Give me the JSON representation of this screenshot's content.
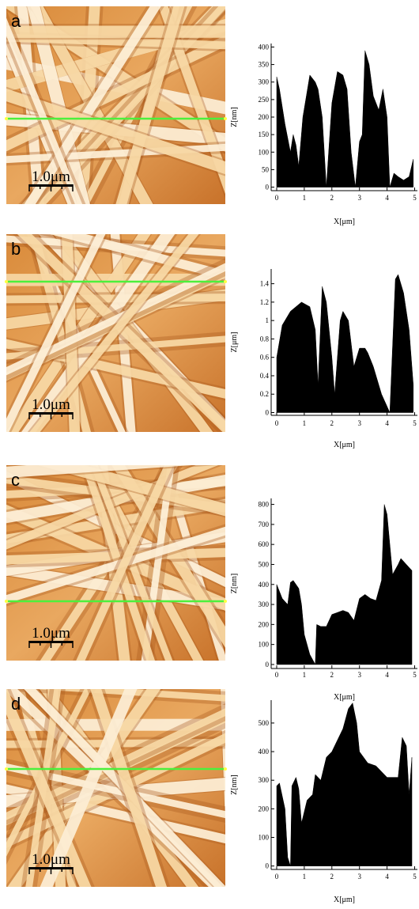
{
  "chart_data": [
    {
      "type": "area",
      "panel_label": "a",
      "scale_bar": "1.0μm",
      "xlabel": "X[μm]",
      "ylabel": "Z[nm]",
      "color": "#000000",
      "x": [
        0,
        0.1,
        0.3,
        0.5,
        0.6,
        0.7,
        0.8,
        0.95,
        1.2,
        1.4,
        1.5,
        1.65,
        1.8,
        2.0,
        2.2,
        2.4,
        2.55,
        2.7,
        2.85,
        3.0,
        3.1,
        3.2,
        3.35,
        3.5,
        3.7,
        3.85,
        4.0,
        4.1,
        4.25,
        4.4,
        4.6,
        4.8,
        4.95
      ],
      "values": [
        315,
        280,
        180,
        100,
        150,
        120,
        60,
        200,
        320,
        300,
        280,
        200,
        0,
        240,
        330,
        320,
        280,
        100,
        0,
        130,
        150,
        390,
        350,
        260,
        220,
        280,
        200,
        0,
        40,
        30,
        20,
        30,
        80
      ],
      "xlim": [
        -0.2,
        5.1
      ],
      "ylim": [
        -10,
        410
      ],
      "xticks": [
        0,
        1,
        2,
        3,
        4,
        5
      ],
      "yticks": [
        0,
        50,
        100,
        150,
        200,
        250,
        300,
        350,
        400
      ]
    },
    {
      "type": "area",
      "panel_label": "b",
      "scale_bar": "1.0μm",
      "xlabel": "X[μm]",
      "ylabel": "Z[μm]",
      "color": "#000000",
      "x": [
        0,
        0.2,
        0.5,
        0.9,
        1.2,
        1.4,
        1.5,
        1.65,
        1.8,
        2.0,
        2.1,
        2.3,
        2.4,
        2.6,
        2.8,
        3.0,
        3.2,
        3.3,
        3.5,
        3.8,
        4.1,
        4.3,
        4.4,
        4.6,
        4.8,
        4.95
      ],
      "values": [
        0.6,
        0.95,
        1.1,
        1.2,
        1.15,
        0.9,
        0.3,
        1.37,
        1.2,
        0.6,
        0.2,
        1.0,
        1.1,
        1.0,
        0.5,
        0.7,
        0.7,
        0.65,
        0.5,
        0.2,
        0,
        1.45,
        1.5,
        1.3,
        0.9,
        0.3
      ],
      "xlim": [
        -0.2,
        5.1
      ],
      "ylim": [
        -0.03,
        1.56
      ],
      "xticks": [
        0,
        1,
        2,
        3,
        4,
        5
      ],
      "yticks": [
        0,
        0.2,
        0.4,
        0.6,
        0.8,
        1,
        1.2,
        1.4
      ]
    },
    {
      "type": "area",
      "panel_label": "c",
      "scale_bar": "1.0μm",
      "xlabel": "X[μm]",
      "ylabel": "Z[nm]",
      "color": "#000000",
      "x": [
        0,
        0.2,
        0.4,
        0.5,
        0.6,
        0.8,
        0.9,
        1.0,
        1.2,
        1.4,
        1.45,
        1.6,
        1.8,
        2.0,
        2.2,
        2.4,
        2.6,
        2.8,
        3.0,
        3.2,
        3.4,
        3.6,
        3.8,
        3.9,
        4.0,
        4.1,
        4.2,
        4.4,
        4.5,
        4.7,
        4.9
      ],
      "values": [
        400,
        330,
        300,
        410,
        420,
        380,
        300,
        150,
        50,
        0,
        200,
        190,
        190,
        250,
        260,
        270,
        260,
        220,
        330,
        350,
        330,
        320,
        420,
        800,
        750,
        600,
        450,
        500,
        530,
        500,
        470
      ],
      "xlim": [
        -0.2,
        5.1
      ],
      "ylim": [
        -20,
        830
      ],
      "xticks": [
        0,
        1,
        2,
        3,
        4,
        5
      ],
      "yticks": [
        0,
        100,
        200,
        300,
        400,
        500,
        600,
        700,
        800
      ]
    },
    {
      "type": "area",
      "panel_label": "d",
      "scale_bar": "1.0μm",
      "xlabel": "X[μm]",
      "ylabel": "Z[nm]",
      "color": "#000000",
      "x": [
        0,
        0.1,
        0.3,
        0.4,
        0.5,
        0.55,
        0.7,
        0.8,
        0.9,
        1.1,
        1.3,
        1.4,
        1.6,
        1.8,
        2.0,
        2.2,
        2.4,
        2.6,
        2.75,
        2.9,
        3.0,
        3.3,
        3.6,
        4.0,
        4.4,
        4.55,
        4.7,
        4.8,
        4.9
      ],
      "values": [
        280,
        290,
        200,
        30,
        0,
        280,
        310,
        270,
        150,
        230,
        250,
        320,
        300,
        380,
        400,
        440,
        480,
        550,
        570,
        500,
        400,
        360,
        350,
        310,
        310,
        450,
        420,
        250,
        380
      ],
      "xlim": [
        -0.2,
        5.1
      ],
      "ylim": [
        -12,
        580
      ],
      "xticks": [
        0,
        1,
        2,
        3,
        4,
        5
      ],
      "yticks": [
        0,
        100,
        200,
        300,
        400,
        500
      ]
    }
  ]
}
